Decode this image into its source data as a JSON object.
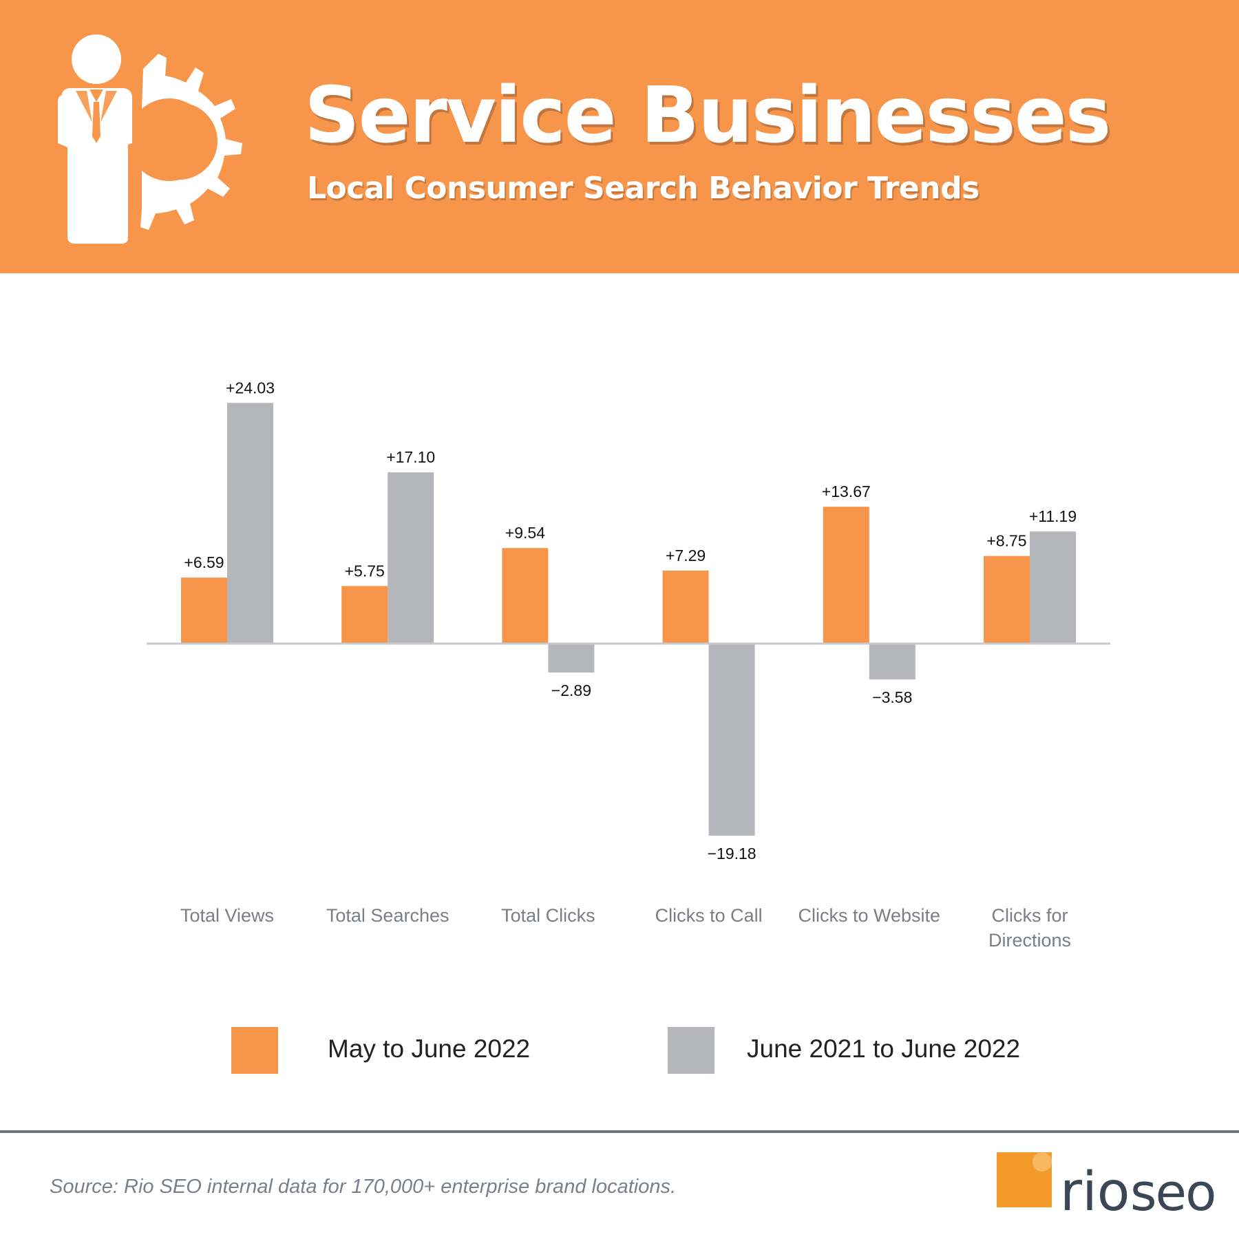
{
  "header": {
    "title": "Service Businesses",
    "subtitle": "Local Consumer Search Behavior Trends",
    "icon": "businessman-gear-icon"
  },
  "colors": {
    "banner": "#f7964b",
    "series_may": "#f7964b",
    "series_june": "#b5b6ba",
    "axis": "#c7c9cc",
    "category_label": "#7a7e85"
  },
  "chart_data": {
    "type": "bar",
    "title": "",
    "xlabel": "",
    "ylabel": "",
    "ylim": [
      -19.18,
      24.03
    ],
    "grid": false,
    "legend_position": "bottom",
    "categories": [
      [
        "Total Views"
      ],
      [
        "Total Searches"
      ],
      [
        "Total Clicks"
      ],
      [
        "Clicks to Call"
      ],
      [
        "Clicks to Website"
      ],
      [
        "Clicks for",
        "Directions"
      ]
    ],
    "series": [
      {
        "name": "May to June 2022",
        "values": [
          6.59,
          5.75,
          9.54,
          7.29,
          13.67,
          8.75
        ],
        "labels": [
          "+6.59",
          "+5.75",
          "+9.54",
          "+7.29",
          "+13.67",
          "+8.75"
        ]
      },
      {
        "name": "June 2021 to June 2022",
        "values": [
          24.03,
          17.1,
          -2.89,
          -19.18,
          -3.58,
          11.19
        ],
        "labels": [
          "+24.03",
          "+17.10",
          "−2.89",
          "−19.18",
          "−3.58",
          "+11.19"
        ]
      }
    ]
  },
  "legend": {
    "items": [
      "May to June 2022",
      "June 2021 to June 2022"
    ]
  },
  "footer": {
    "source": "Source: Rio SEO internal data for 170,000+ enterprise brand locations.",
    "logo_text_rio": "rio",
    "logo_text_seo": "seo"
  }
}
